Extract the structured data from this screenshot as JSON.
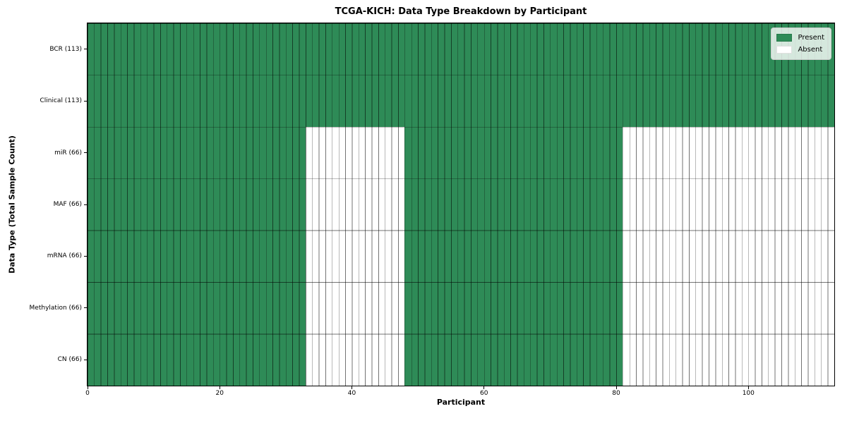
{
  "chart_data": {
    "type": "heatmap",
    "title": "TCGA-KICH: Data Type Breakdown by Participant",
    "xlabel": "Participant",
    "ylabel": "Data Type (Total Sample Count)",
    "xlim": [
      0,
      113
    ],
    "x_ticks": [
      0,
      20,
      40,
      60,
      80,
      100
    ],
    "n_participants": 113,
    "grid": "cell-edges-on",
    "rows": [
      {
        "label": "BCR (113)",
        "data_type": "BCR",
        "sample_count": 113,
        "present_ranges": [
          [
            0,
            113
          ]
        ]
      },
      {
        "label": "Clinical (113)",
        "data_type": "Clinical",
        "sample_count": 113,
        "present_ranges": [
          [
            0,
            113
          ]
        ]
      },
      {
        "label": "miR (66)",
        "data_type": "miR",
        "sample_count": 66,
        "present_ranges": [
          [
            0,
            33
          ],
          [
            48,
            81
          ]
        ]
      },
      {
        "label": "MAF (66)",
        "data_type": "MAF",
        "sample_count": 66,
        "present_ranges": [
          [
            0,
            33
          ],
          [
            48,
            81
          ]
        ]
      },
      {
        "label": "mRNA (66)",
        "data_type": "mRNA",
        "sample_count": 66,
        "present_ranges": [
          [
            0,
            33
          ],
          [
            48,
            81
          ]
        ]
      },
      {
        "label": "Methylation (66)",
        "data_type": "Methylation",
        "sample_count": 66,
        "present_ranges": [
          [
            0,
            33
          ],
          [
            48,
            81
          ]
        ]
      },
      {
        "label": "CN (66)",
        "data_type": "CN",
        "sample_count": 66,
        "present_ranges": [
          [
            0,
            33
          ],
          [
            48,
            81
          ]
        ]
      }
    ],
    "legend": {
      "position": "upper-right",
      "entries": [
        {
          "label": "Present",
          "color": "#2e8b57"
        },
        {
          "label": "Absent",
          "color": "#ffffff"
        }
      ]
    },
    "colors": {
      "present": "#2e8b57",
      "absent": "#ffffff",
      "cell_edge": "rgba(0,0,0,0.55)",
      "spine": "#000000"
    }
  }
}
